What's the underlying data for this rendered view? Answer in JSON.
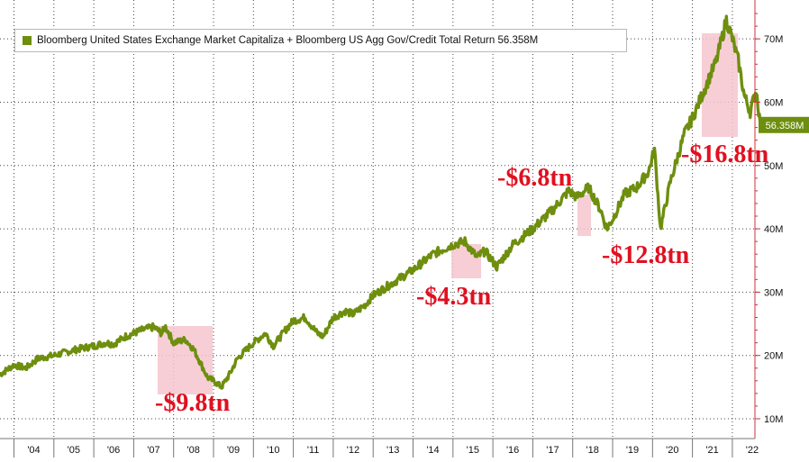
{
  "colors": {
    "line": "#6e8e0e",
    "crash_line": "#7a7a10",
    "highlight": "#f6c6cf",
    "annotation": "#e01020",
    "axis_right": "#d0303a",
    "last_value_tag": "#6e8e0e"
  },
  "legend": {
    "label": "Bloomberg United States Exchange Market Capitaliza + Bloomberg US Agg Gov/Credit Total Return 56.358M"
  },
  "annotations": [
    "-$9.8tn",
    "-$4.3tn",
    "-$6.8tn",
    "-$12.8tn",
    "-$16.8tn"
  ],
  "last_value_label": "56.358M",
  "chart_data": {
    "type": "line",
    "title": "",
    "ylim": [
      10,
      75
    ],
    "y_ticks": [
      10,
      20,
      30,
      40,
      50,
      60,
      70
    ],
    "y_tick_labels": [
      "10M",
      "20M",
      "30M",
      "40M",
      "50M",
      "60M",
      "70M"
    ],
    "x_tick_labels": [
      "'04",
      "'05",
      "'06",
      "'07",
      "'08",
      "'09",
      "'10",
      "'11",
      "'12",
      "'13",
      "'14",
      "'15",
      "'16",
      "'17",
      "'18",
      "'19",
      "'20",
      "'21",
      "'22"
    ],
    "x_tick_years": [
      2004,
      2005,
      2006,
      2007,
      2008,
      2009,
      2010,
      2011,
      2012,
      2013,
      2014,
      2015,
      2016,
      2017,
      2018,
      2019,
      2020,
      2021,
      2022
    ],
    "grid": true,
    "series": [
      {
        "name": "Bloomberg United States Exchange Market Capitaliza + Bloomberg US Agg Gov/Credit Total Return",
        "x": [
          2003.65,
          2004.0,
          2004.3,
          2004.6,
          2005.0,
          2005.3,
          2005.6,
          2006.0,
          2006.3,
          2006.5,
          2006.8,
          2007.0,
          2007.2,
          2007.5,
          2007.7,
          2007.8,
          2008.0,
          2008.3,
          2008.5,
          2008.7,
          2008.85,
          2009.0,
          2009.2,
          2009.4,
          2009.6,
          2010.0,
          2010.3,
          2010.5,
          2010.8,
          2011.0,
          2011.3,
          2011.6,
          2011.75,
          2012.0,
          2012.3,
          2012.5,
          2012.8,
          2013.0,
          2013.5,
          2014.0,
          2014.5,
          2015.0,
          2015.3,
          2015.6,
          2015.8,
          2016.1,
          2016.5,
          2017.0,
          2017.5,
          2017.9,
          2018.1,
          2018.4,
          2018.7,
          2018.85,
          2019.0,
          2019.3,
          2019.6,
          2019.9,
          2020.05,
          2020.2,
          2020.45,
          2020.8,
          2021.0,
          2021.3,
          2021.6,
          2021.85,
          2022.0,
          2022.15,
          2022.3,
          2022.45,
          2022.6,
          2022.7
        ],
        "y": [
          17.0,
          18.5,
          18.0,
          19.5,
          20.0,
          20.5,
          21.0,
          21.5,
          22.0,
          21.8,
          23.0,
          23.5,
          24.0,
          24.5,
          23.5,
          24.5,
          22.0,
          22.5,
          21.0,
          18.5,
          16.5,
          16.0,
          15.0,
          17.0,
          19.5,
          22.0,
          23.5,
          21.5,
          24.0,
          25.5,
          26.0,
          23.5,
          23.0,
          26.0,
          27.0,
          26.5,
          28.0,
          29.5,
          31.5,
          33.5,
          36.0,
          37.5,
          38.0,
          35.5,
          36.5,
          34.0,
          37.5,
          40.0,
          43.0,
          46.0,
          45.0,
          46.5,
          43.0,
          40.0,
          41.5,
          45.5,
          46.5,
          49.0,
          52.5,
          40.0,
          47.5,
          55.0,
          57.5,
          62.0,
          66.5,
          73.0,
          70.0,
          66.5,
          61.0,
          58.5,
          62.0,
          56.4
        ]
      }
    ]
  }
}
